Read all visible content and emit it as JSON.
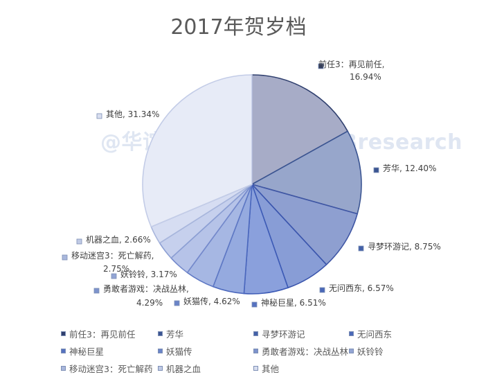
{
  "chart_data": {
    "type": "pie",
    "title": "2017年贺岁档",
    "watermark": "@华谊兄弟研究院 ID：HBresearch",
    "slices": [
      {
        "name": "前任3：再见前任",
        "label_name": "前任3：再见前任,",
        "label_value": "16.94%",
        "value": 16.94,
        "color": "#a7acc7",
        "edge": "#2f3f6e",
        "swatch": "#2f3f6e"
      },
      {
        "name": "芳华",
        "label_name": "芳华,",
        "label_value": "12.40%",
        "value": 12.4,
        "color": "#97a6cb",
        "edge": "#3b5592",
        "swatch": "#3b5592"
      },
      {
        "name": "寻梦环游记",
        "label_name": "寻梦环游记,",
        "label_value": "8.75%",
        "value": 8.75,
        "color": "#8e9fd0",
        "edge": "#3f56a4",
        "swatch": "#4461a8"
      },
      {
        "name": "无问西东",
        "label_name": "无问西东,",
        "label_value": "6.57%",
        "value": 6.57,
        "color": "#889dd6",
        "edge": "#3a55ad",
        "swatch": "#4a68b8"
      },
      {
        "name": "神秘巨星",
        "label_name": "神秘巨星,",
        "label_value": "6.51%",
        "value": 6.51,
        "color": "#8aa0dc",
        "edge": "#3d5bb6",
        "swatch": "#5672c0"
      },
      {
        "name": "妖猫传",
        "label_name": "妖猫传,",
        "label_value": "4.62%",
        "value": 4.62,
        "color": "#95aadf",
        "edge": "#4a67bd",
        "swatch": "#6a84c8"
      },
      {
        "name": "勇敢者游戏：决战丛林",
        "label_name": "勇敢者游戏：决战丛林,",
        "label_value": "4.29%",
        "value": 4.29,
        "color": "#a6b7e3",
        "edge": "#5e78c4",
        "swatch": "#7d93cc"
      },
      {
        "name": "妖铃铃",
        "label_name": "妖铃铃,",
        "label_value": "3.17%",
        "value": 3.17,
        "color": "#b6c3e8",
        "edge": "#7489cb",
        "swatch": "#93a5d4"
      },
      {
        "name": "移动迷宫3：死亡解药",
        "label_name": "移动迷宫3：死亡解药,",
        "label_value": "2.75%",
        "value": 2.75,
        "color": "#c6d0ed",
        "edge": "#8c9fd3",
        "swatch": "#a9b7dc"
      },
      {
        "name": "机器之血",
        "label_name": "机器之血,",
        "label_value": "2.66%",
        "value": 2.66,
        "color": "#d6ddf2",
        "edge": "#a8b6dc",
        "swatch": "#c0cae5"
      },
      {
        "name": "其他",
        "label_name": "其他,",
        "label_value": "31.34%",
        "value": 31.34,
        "color": "#e7ebf7",
        "edge": "#c3cce7",
        "swatch": "#d8deef"
      }
    ],
    "legend_placement": "bottom",
    "xlabel": "",
    "ylabel": ""
  }
}
